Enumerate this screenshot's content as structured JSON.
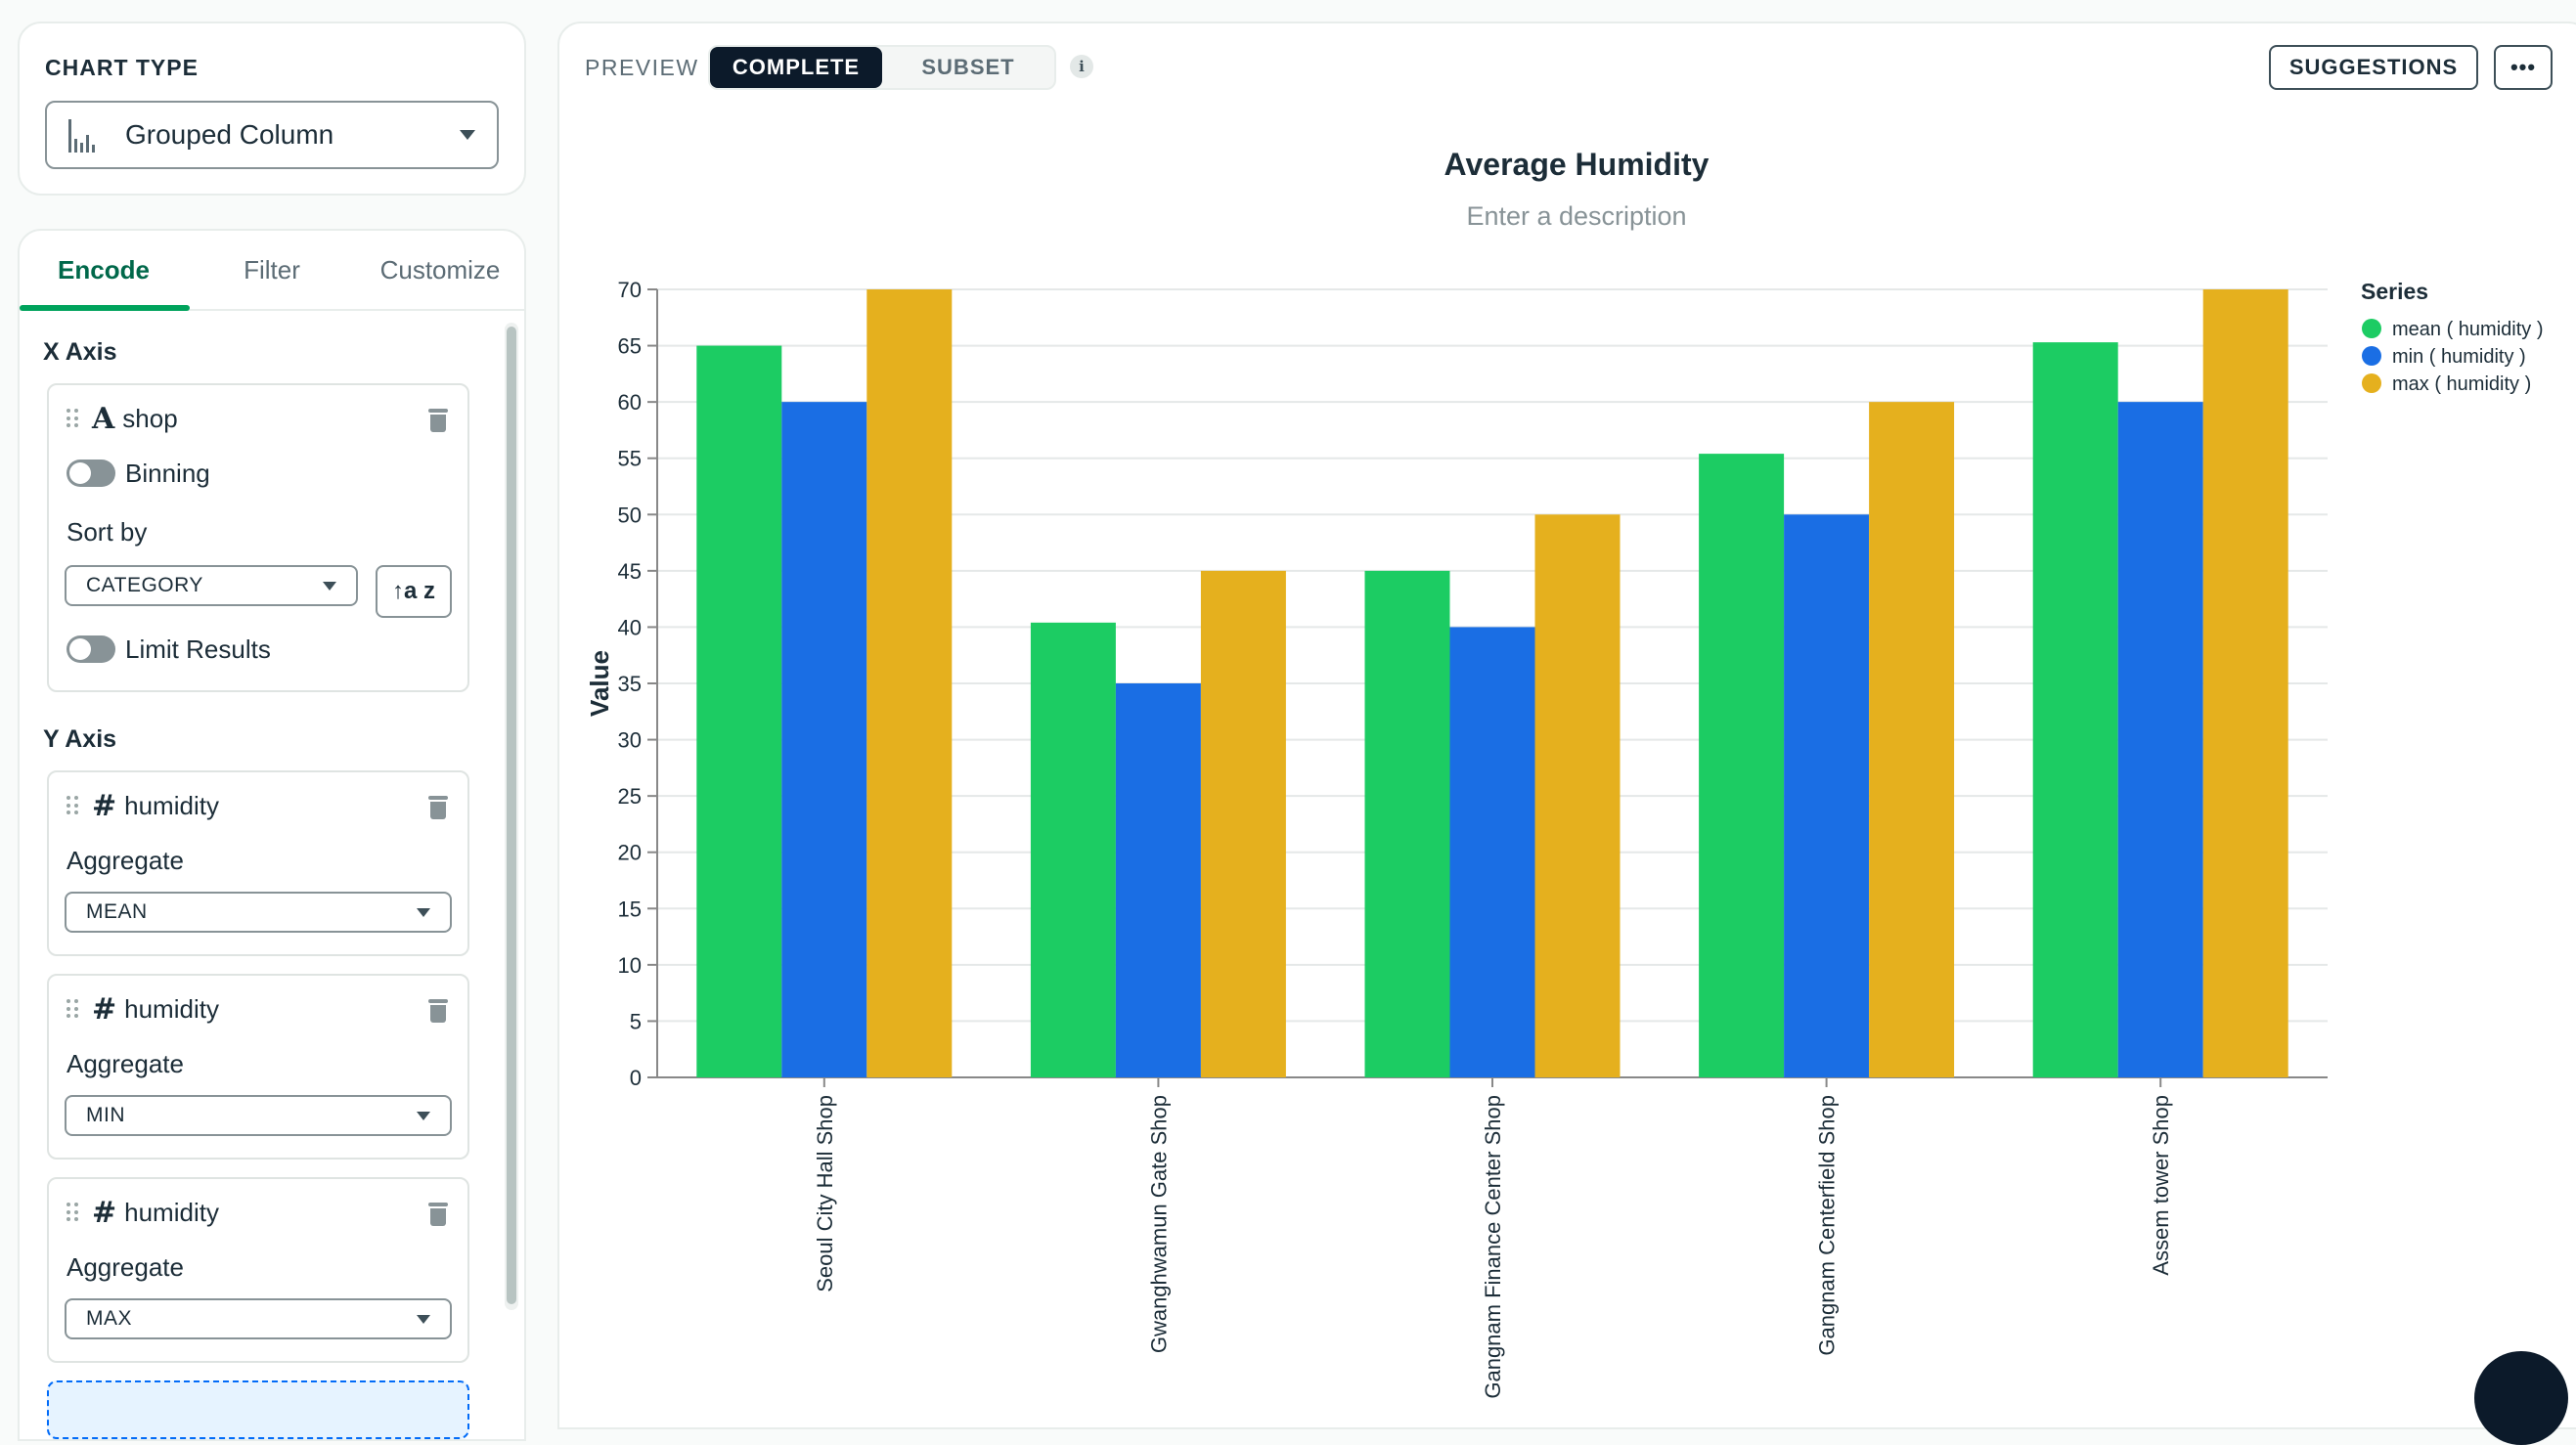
{
  "chart_type_panel": {
    "heading": "CHART TYPE",
    "selected": "Grouped Column"
  },
  "tabs": [
    "Encode",
    "Filter",
    "Customize"
  ],
  "x_axis": {
    "heading": "X Axis",
    "field_type_glyph": "A",
    "field_name": "shop",
    "binning_label": "Binning",
    "sort_by_label": "Sort by",
    "sort_value": "CATEGORY",
    "sort_direction_glyph": "↑a z",
    "limit_label": "Limit Results"
  },
  "y_axis": {
    "heading": "Y Axis",
    "fields": [
      {
        "type_glyph": "#",
        "name": "humidity",
        "aggregate_label": "Aggregate",
        "aggregate": "MEAN"
      },
      {
        "type_glyph": "#",
        "name": "humidity",
        "aggregate_label": "Aggregate",
        "aggregate": "MIN"
      },
      {
        "type_glyph": "#",
        "name": "humidity",
        "aggregate_label": "Aggregate",
        "aggregate": "MAX"
      }
    ]
  },
  "toolbar": {
    "preview_label": "PREVIEW",
    "mode_complete": "COMPLETE",
    "mode_subset": "SUBSET",
    "info_glyph": "i",
    "suggestions_label": "SUGGESTIONS",
    "more_label": "•••"
  },
  "icons": {
    "chart_type": "grouped-column-icon",
    "trash": "trash-icon",
    "drag": "drag-handle-icon",
    "info": "info-icon"
  },
  "colors": {
    "mean": "#1ccc63",
    "min": "#1a6ee4",
    "max": "#e5b01e",
    "active_tab": "#00684a"
  },
  "chart_data": {
    "type": "bar",
    "title": "Average Humidity",
    "subtitle": "Enter a description",
    "xlabel": "",
    "ylabel": "Value",
    "ylim": [
      0,
      70
    ],
    "yticks": [
      0,
      5,
      10,
      15,
      20,
      25,
      30,
      35,
      40,
      45,
      50,
      55,
      60,
      65,
      70
    ],
    "grid": true,
    "legend_title": "Series",
    "legend_position": "right",
    "categories": [
      "Seoul City Hall Shop",
      "Gwanghwamun Gate Shop",
      "Gangnam Finance Center Shop",
      "Gangnam Centerfield Shop",
      "Assem tower Shop"
    ],
    "series": [
      {
        "name": "mean ( humidity )",
        "values": [
          65,
          40.4,
          45,
          55.4,
          65.3
        ],
        "color": "#1ccc63"
      },
      {
        "name": "min ( humidity )",
        "values": [
          60,
          35,
          40,
          50,
          60
        ],
        "color": "#1a6ee4"
      },
      {
        "name": "max ( humidity )",
        "values": [
          70,
          45,
          50,
          60,
          70
        ],
        "color": "#e5b01e"
      }
    ]
  }
}
